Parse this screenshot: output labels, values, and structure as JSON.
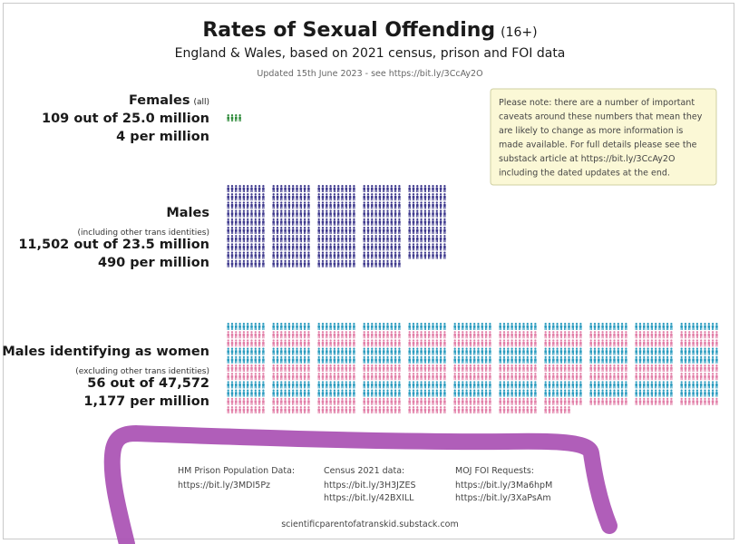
{
  "chart_data": {
    "type": "pictogram",
    "title": "Rates of Sexual Offending",
    "title_suffix": "(16+)",
    "subtitle": "England & Wales, based on 2021 census, prison and FOI data",
    "updated": "Updated 15th June 2023 - see https://bit.ly/3CcAy2O",
    "note_lines": [
      "Please note: there are a number of important",
      "caveats around these numbers that mean they",
      "are likely to change as more information is",
      "made available. For full details please see the",
      "substack article at https://bit.ly/3CcAy2O",
      "including the dated updates at the end."
    ],
    "groups": [
      {
        "name": "Females",
        "name_suffix": "(all)",
        "qualifier": "",
        "count_text": "109 out of 25.0 million",
        "rate_text": "4 per million",
        "offenders": 109,
        "population_millions": 25.0,
        "rate_per_million": 4,
        "icons": 4,
        "icon_scale": "1 figure per million",
        "color": "#2e8b3a",
        "colors_alt": []
      },
      {
        "name": "Males",
        "name_suffix": "",
        "qualifier": "(including other trans identities)",
        "count_text": "11,502 out of 23.5 million",
        "rate_text": "490 per million",
        "offenders": 11502,
        "population_millions": 23.5,
        "rate_per_million": 490,
        "icons": 490,
        "icon_scale": "1 figure per million",
        "color": "#3f3a8e",
        "colors_alt": []
      },
      {
        "name": "Males identifying as women",
        "name_suffix": "",
        "qualifier": "(excluding other trans identities)",
        "count_text": "56 out of 47,572",
        "rate_text": "1,177 per million",
        "offenders": 56,
        "population": 47572,
        "rate_per_million": 1177,
        "icons": 1177,
        "icon_scale": "1 figure per million",
        "color": "#2a9bbf",
        "colors_alt": [
          "#2a9bbf",
          "#e27fa8",
          "#e27fa8",
          "#2a9bbf"
        ]
      }
    ]
  },
  "footer": {
    "sources": [
      {
        "label": "HM Prison Population Data:",
        "links": [
          "https://bit.ly/3MDI5Pz"
        ]
      },
      {
        "label": "Census 2021 data:",
        "links": [
          "https://bit.ly/3H3JZES",
          "https://bit.ly/42BXILL"
        ]
      },
      {
        "label": "MOJ FOI Requests:",
        "links": [
          "https://bit.ly/3Ma6hpM",
          "https://bit.ly/3XaPsAm"
        ]
      }
    ],
    "site": "scientificparentofatranskid.substack.com"
  },
  "annotation": {
    "color": "#a950b3",
    "shape": "hand-drawn bracket"
  }
}
